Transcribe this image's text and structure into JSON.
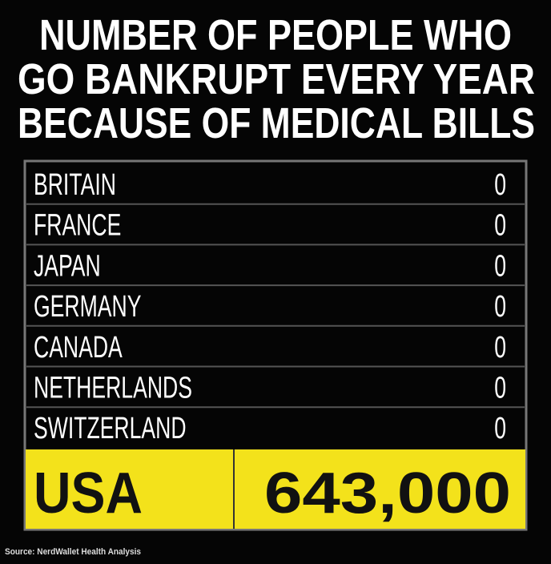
{
  "title": [
    "NUMBER OF PEOPLE WHO",
    "GO BANKRUPT EVERY YEAR",
    "BECAUSE OF MEDICAL BILLS"
  ],
  "table": {
    "rows": [
      [
        "BRITAIN",
        "0"
      ],
      [
        "FRANCE",
        "0"
      ],
      [
        "JAPAN",
        "0"
      ],
      [
        "GERMANY",
        "0"
      ],
      [
        "CANADA",
        "0"
      ],
      [
        "NETHERLANDS",
        "0"
      ],
      [
        "SWITZERLAND",
        "0"
      ]
    ],
    "highlight": [
      "USA",
      "643,000"
    ]
  },
  "source": "Source: NerdWallet Health Analysis"
}
